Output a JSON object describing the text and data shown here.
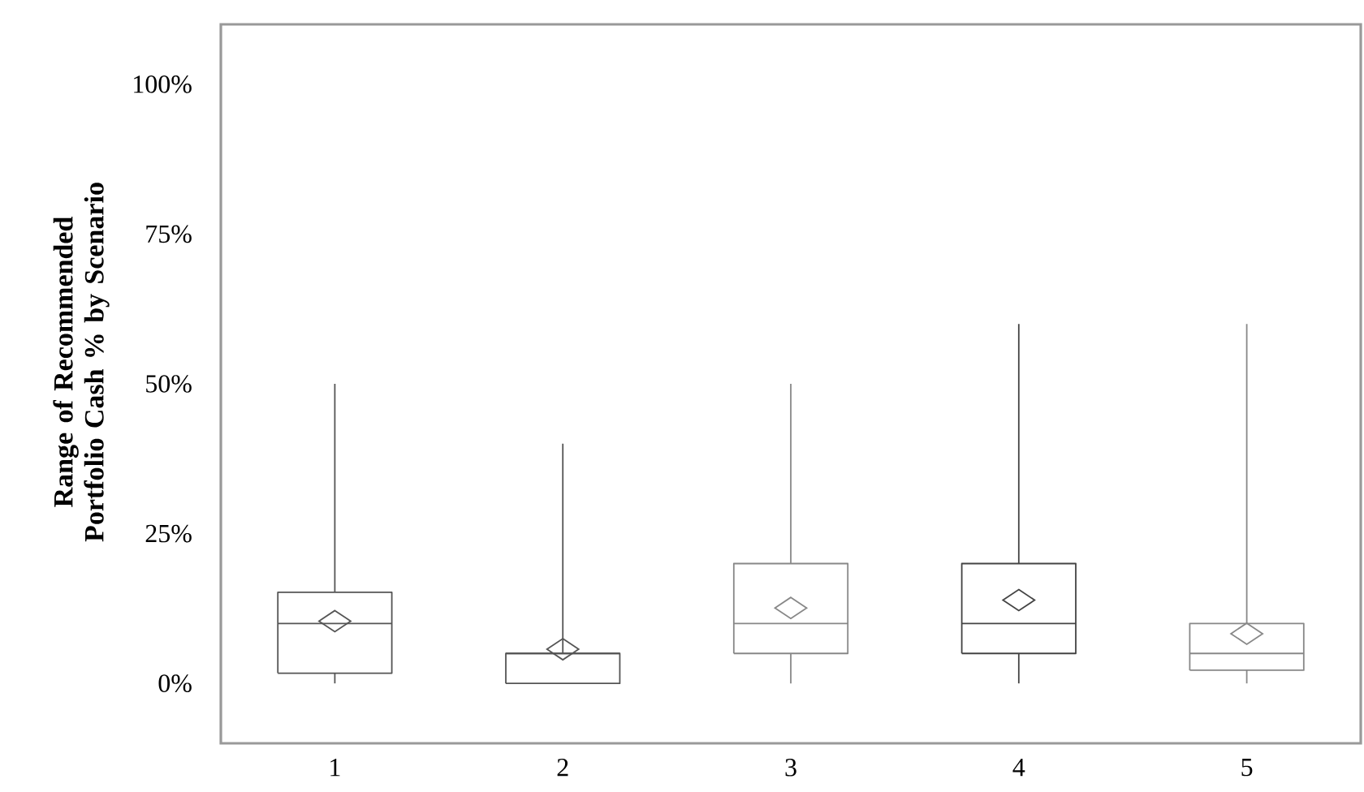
{
  "chart_data": {
    "type": "box",
    "ylabel": "Range of Recommended Portfolio Cash % by Scenario",
    "categories": [
      "1",
      "2",
      "3",
      "4",
      "5"
    ],
    "boxes": [
      {
        "low": 0,
        "q1": 1.7,
        "median": 10,
        "q3": 15.2,
        "high": 50,
        "mean": 10.4
      },
      {
        "low": 0,
        "q1": 0,
        "median": 5,
        "q3": 5,
        "high": 40,
        "mean": 5.7
      },
      {
        "low": 0,
        "q1": 5,
        "median": 10,
        "q3": 20,
        "high": 50,
        "mean": 12.6
      },
      {
        "low": 0,
        "q1": 5,
        "median": 10,
        "q3": 20,
        "high": 60,
        "mean": 13.9
      },
      {
        "low": 0,
        "q1": 2.2,
        "median": 5,
        "q3": 10,
        "high": 60,
        "mean": 8.3
      }
    ],
    "colors": [
      "#555555",
      "#555555",
      "#888888",
      "#444444",
      "#888888"
    ],
    "ylim": [
      -10,
      110
    ],
    "yticks": [
      {
        "value": 0,
        "label": "0%"
      },
      {
        "value": 25,
        "label": "25%"
      },
      {
        "value": 50,
        "label": "50%"
      },
      {
        "value": 75,
        "label": "75%"
      },
      {
        "value": 100,
        "label": "100%"
      }
    ],
    "grid": false
  }
}
